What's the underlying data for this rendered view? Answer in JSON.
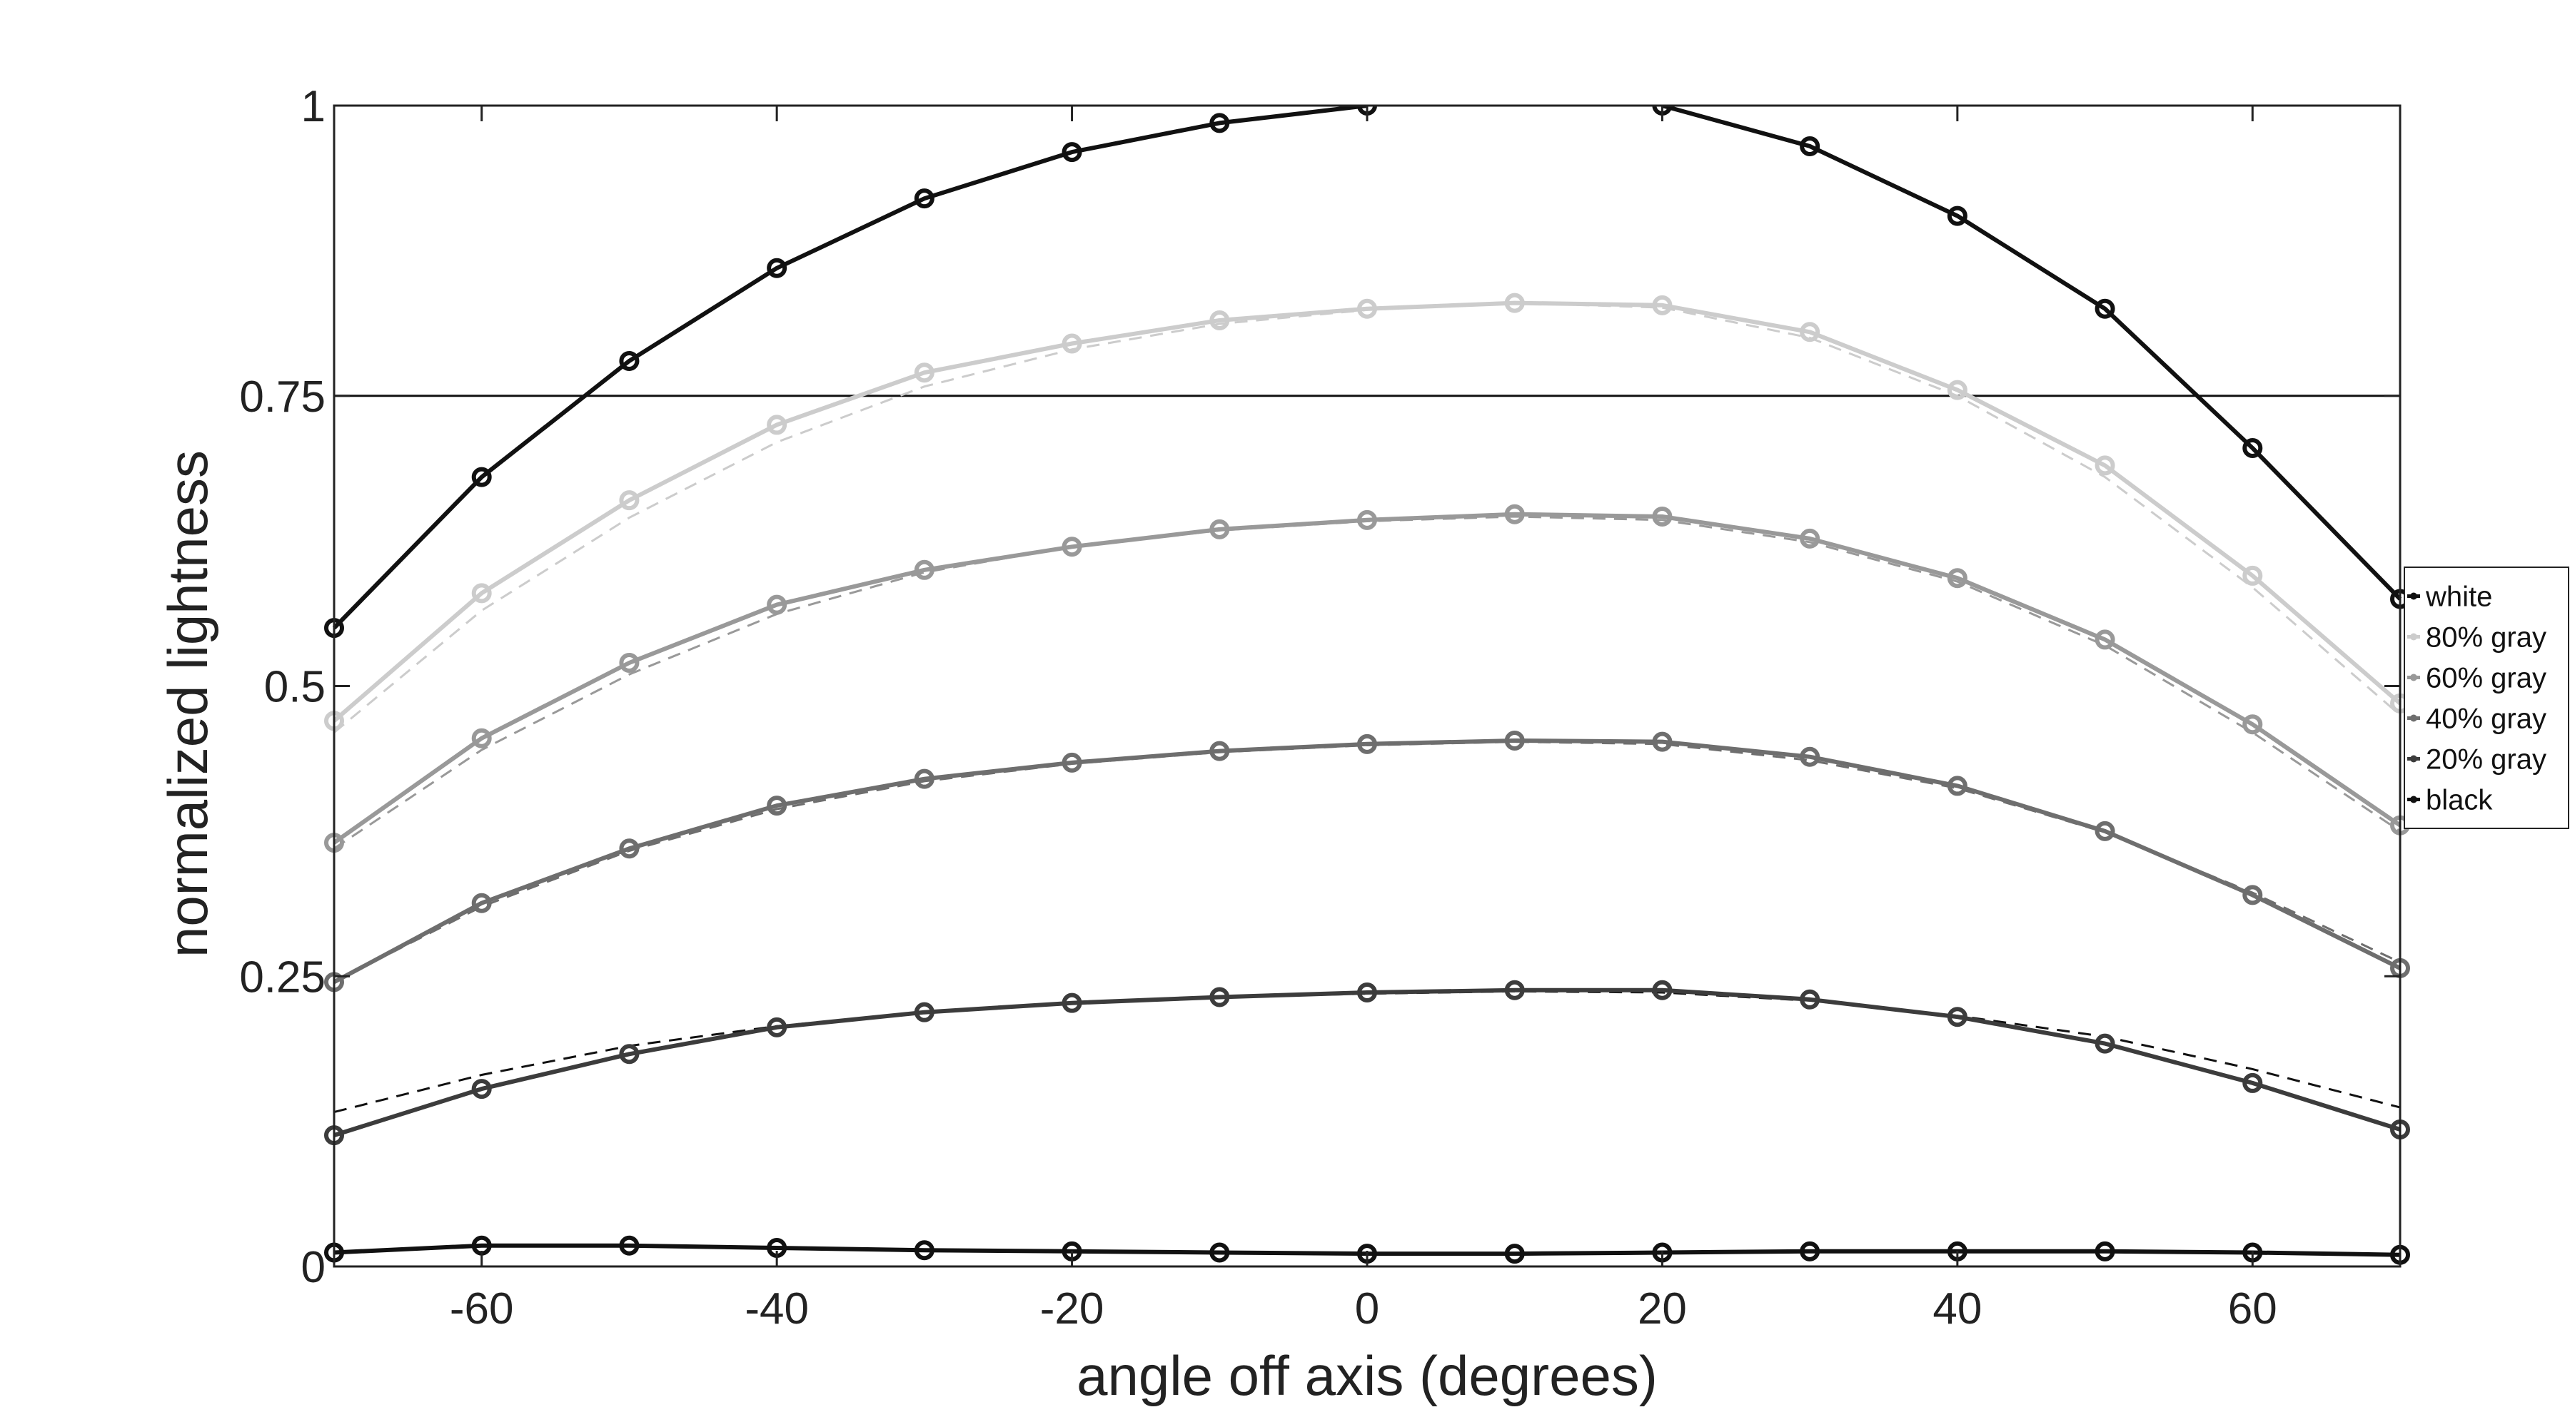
{
  "chart_data": {
    "type": "line",
    "title": "",
    "xlabel": "angle off axis (degrees)",
    "ylabel": "normalized lightness",
    "xlim": [
      -70,
      70
    ],
    "ylim": [
      0,
      1
    ],
    "x": [
      -70,
      -60,
      -50,
      -40,
      -30,
      -20,
      -10,
      0,
      10,
      20,
      30,
      40,
      50,
      60,
      70
    ],
    "x_ticks": [
      -60,
      -40,
      -20,
      0,
      20,
      40,
      60
    ],
    "x_tick_labels": [
      "-60",
      "-40",
      "-20",
      "0",
      "20",
      "40",
      "60"
    ],
    "y_ticks": [
      0,
      0.25,
      0.5,
      0.75,
      1
    ],
    "y_tick_labels": [
      "0",
      "0.25",
      "0.5",
      "0.75",
      "1"
    ],
    "reference_line": 0.75,
    "grid": false,
    "legend_position": "right",
    "series": [
      {
        "name": "white",
        "color": "#111111",
        "values": [
          0.55,
          0.68,
          0.78,
          0.86,
          0.92,
          0.96,
          0.985,
          1.0,
          null,
          1.0,
          0.965,
          0.905,
          0.825,
          0.705,
          0.575
        ]
      },
      {
        "name": "80% gray",
        "color": "#cccccc",
        "values": [
          0.47,
          0.58,
          0.66,
          0.725,
          0.77,
          0.795,
          0.815,
          0.825,
          0.83,
          0.828,
          0.805,
          0.755,
          0.69,
          0.595,
          0.485
        ]
      },
      {
        "name": "60% gray",
        "color": "#999999",
        "values": [
          0.365,
          0.455,
          0.52,
          0.57,
          0.6,
          0.62,
          0.635,
          0.643,
          0.648,
          0.646,
          0.627,
          0.593,
          0.54,
          0.467,
          0.38
        ]
      },
      {
        "name": "40% gray",
        "color": "#6e6e6e",
        "values": [
          0.245,
          0.313,
          0.36,
          0.397,
          0.42,
          0.434,
          0.444,
          0.45,
          0.453,
          0.452,
          0.439,
          0.414,
          0.375,
          0.32,
          0.257
        ]
      },
      {
        "name": "20% gray",
        "color": "#3c3c3c",
        "values": [
          0.113,
          0.153,
          0.183,
          0.206,
          0.219,
          0.227,
          0.232,
          0.236,
          0.238,
          0.238,
          0.23,
          0.215,
          0.192,
          0.158,
          0.118
        ]
      },
      {
        "name": "black",
        "color": "#111111",
        "values": [
          0.012,
          0.018,
          0.018,
          0.016,
          0.014,
          0.013,
          0.012,
          0.011,
          0.011,
          0.012,
          0.013,
          0.013,
          0.013,
          0.012,
          0.01
        ]
      }
    ],
    "reference_curves": [
      {
        "color": "#cccccc",
        "values": [
          0.46,
          0.565,
          0.645,
          0.71,
          0.758,
          0.79,
          0.812,
          0.824,
          0.83,
          0.826,
          0.8,
          0.75,
          0.68,
          0.585,
          0.475
        ]
      },
      {
        "color": "#999999",
        "values": [
          0.36,
          0.445,
          0.51,
          0.562,
          0.598,
          0.62,
          0.634,
          0.642,
          0.646,
          0.643,
          0.624,
          0.59,
          0.535,
          0.46,
          0.375
        ]
      },
      {
        "color": "#6e6e6e",
        "values": [
          0.245,
          0.31,
          0.358,
          0.394,
          0.418,
          0.433,
          0.443,
          0.449,
          0.452,
          0.45,
          0.436,
          0.412,
          0.374,
          0.322,
          0.262
        ]
      },
      {
        "color": "#111111",
        "values": [
          0.133,
          0.165,
          0.19,
          0.207,
          0.219,
          0.227,
          0.232,
          0.235,
          0.237,
          0.236,
          0.229,
          0.216,
          0.198,
          0.17,
          0.137
        ]
      }
    ]
  }
}
